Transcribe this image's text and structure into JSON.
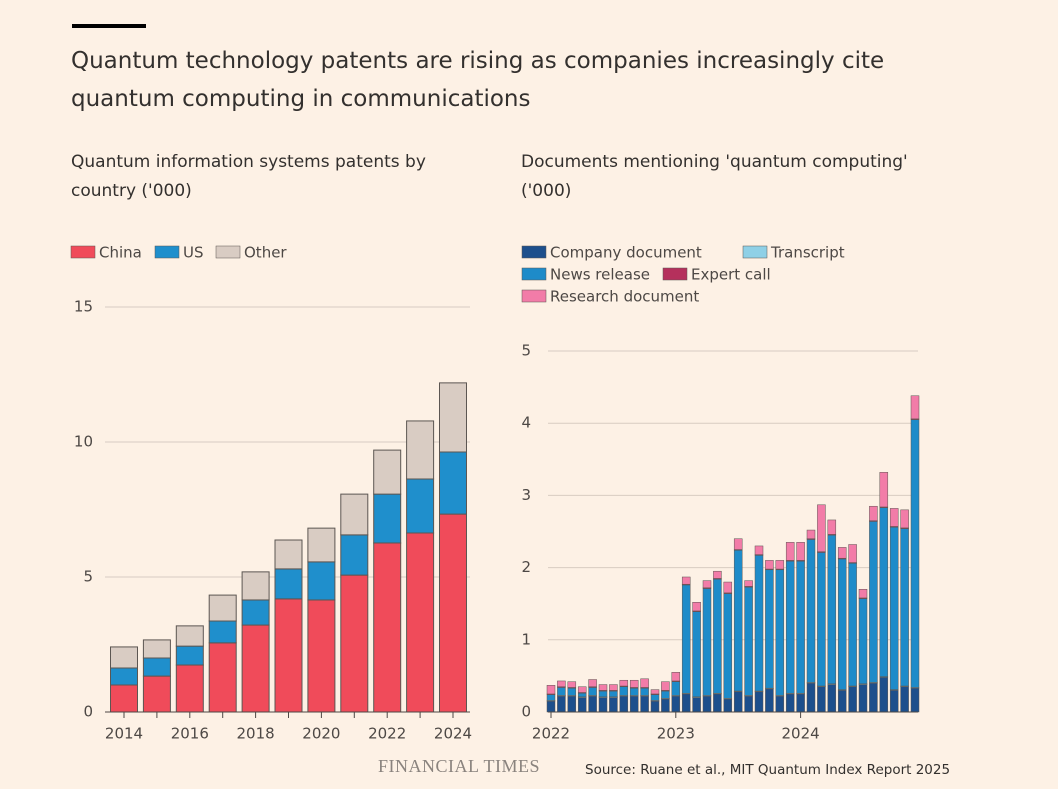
{
  "title": "Quantum technology patents are rising as companies increasingly cite quantum computing in communications",
  "brand": "FINANCIAL TIMES",
  "source": "Source: Ruane et al., MIT Quantum Index Report 2025",
  "chart_data": [
    {
      "type": "bar",
      "stacked": true,
      "title": "Quantum information systems patents by country ('000)",
      "categories": [
        "2014",
        null,
        "2016",
        null,
        "2018",
        null,
        "2020",
        null,
        "2022",
        null,
        "2024"
      ],
      "series": [
        {
          "name": "China",
          "color": "#f04b5a",
          "values": [
            1.0,
            1.33,
            1.74,
            2.56,
            3.22,
            4.19,
            4.15,
            5.07,
            6.26,
            6.63,
            7.33
          ]
        },
        {
          "name": "US",
          "color": "#1f8fcc",
          "values": [
            0.63,
            0.67,
            0.7,
            0.81,
            0.93,
            1.11,
            1.41,
            1.49,
            1.81,
            2.0,
            2.3
          ]
        },
        {
          "name": "Other",
          "color": "#d9ccc3",
          "values": [
            0.78,
            0.67,
            0.75,
            0.96,
            1.04,
            1.07,
            1.25,
            1.51,
            1.63,
            2.15,
            2.56
          ]
        }
      ],
      "ylim": [
        0,
        15
      ],
      "yticks": [
        0,
        5,
        10,
        15
      ],
      "grid": true
    },
    {
      "type": "bar",
      "stacked": true,
      "title": "Documents mentioning 'quantum computing' ('000)",
      "categories": [
        "2022",
        null,
        null,
        null,
        null,
        null,
        null,
        null,
        null,
        null,
        null,
        null,
        "2023",
        null,
        null,
        null,
        null,
        null,
        null,
        null,
        null,
        null,
        null,
        null,
        "2024",
        null,
        null,
        null,
        null,
        null,
        null,
        null,
        null,
        null,
        null,
        null
      ],
      "series": [
        {
          "name": "Company document",
          "color": "#1d4f8c",
          "values": [
            0.15,
            0.22,
            0.22,
            0.2,
            0.22,
            0.2,
            0.2,
            0.22,
            0.22,
            0.22,
            0.15,
            0.18,
            0.22,
            0.25,
            0.2,
            0.22,
            0.25,
            0.18,
            0.28,
            0.22,
            0.28,
            0.32,
            0.22,
            0.25,
            0.25,
            0.4,
            0.35,
            0.38,
            0.3,
            0.35,
            0.38,
            0.4,
            0.48,
            0.3,
            0.35,
            0.33
          ]
        },
        {
          "name": "Transcript",
          "color": "#8fd0e6",
          "values": [
            0.01,
            0.01,
            0.01,
            0.01,
            0.01,
            0.01,
            0.01,
            0.01,
            0.01,
            0.01,
            0.01,
            0.01,
            0.01,
            0.01,
            0.01,
            0.01,
            0.01,
            0.01,
            0.01,
            0.01,
            0.01,
            0.01,
            0.01,
            0.01,
            0.01,
            0.01,
            0.01,
            0.01,
            0.01,
            0.01,
            0.01,
            0.01,
            0.01,
            0.01,
            0.01,
            0.01
          ]
        },
        {
          "name": "News release",
          "color": "#1e8bc9",
          "values": [
            0.08,
            0.11,
            0.1,
            0.05,
            0.11,
            0.08,
            0.08,
            0.12,
            0.1,
            0.1,
            0.08,
            0.1,
            0.19,
            1.5,
            1.18,
            1.48,
            1.58,
            1.45,
            1.95,
            1.5,
            1.88,
            1.64,
            1.74,
            1.83,
            1.83,
            1.98,
            1.85,
            2.06,
            1.81,
            1.7,
            1.18,
            2.23,
            2.34,
            2.25,
            2.18,
            3.71
          ]
        },
        {
          "name": "Expert call",
          "color": "#b5305c",
          "values": [
            0.01,
            0.01,
            0.01,
            0.01,
            0.01,
            0.01,
            0.01,
            0.01,
            0.01,
            0.01,
            0.01,
            0.01,
            0.01,
            0.01,
            0.01,
            0.01,
            0.01,
            0.01,
            0.01,
            0.01,
            0.01,
            0.01,
            0.01,
            0.01,
            0.01,
            0.01,
            0.01,
            0.01,
            0.01,
            0.01,
            0.01,
            0.01,
            0.01,
            0.01,
            0.01,
            0.01
          ]
        },
        {
          "name": "Research document",
          "color": "#f27ca8",
          "values": [
            0.12,
            0.08,
            0.08,
            0.08,
            0.1,
            0.08,
            0.08,
            0.08,
            0.1,
            0.12,
            0.06,
            0.12,
            0.12,
            0.1,
            0.12,
            0.1,
            0.1,
            0.15,
            0.15,
            0.08,
            0.12,
            0.12,
            0.12,
            0.25,
            0.25,
            0.12,
            0.65,
            0.2,
            0.15,
            0.25,
            0.12,
            0.2,
            0.48,
            0.25,
            0.25,
            0.32
          ]
        }
      ],
      "ylim": [
        0,
        5
      ],
      "yticks": [
        0,
        1,
        2,
        3,
        4,
        5
      ],
      "grid": true
    }
  ]
}
